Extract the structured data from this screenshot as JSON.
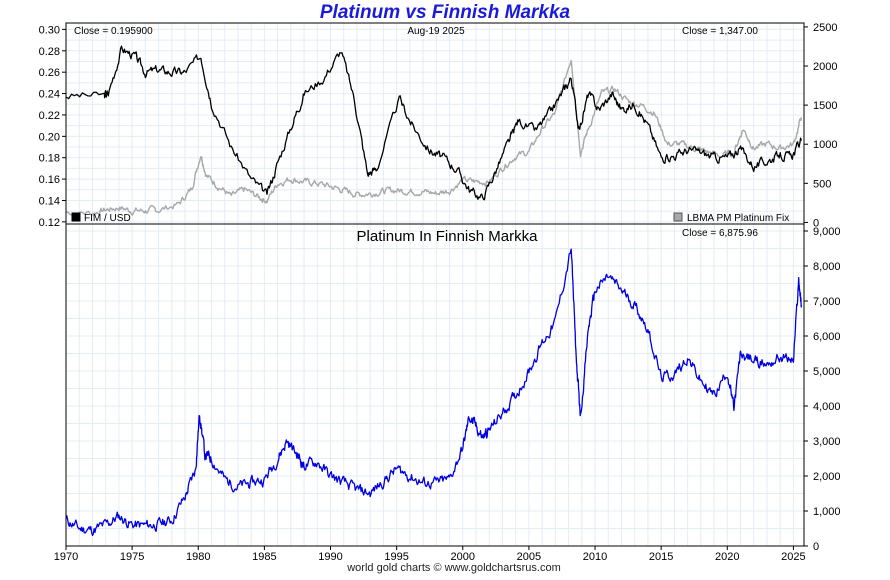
{
  "title": "Platinum vs Finnish Markka",
  "credit": "world gold charts © www.goldchartsrus.com",
  "date_label": "Aug-19  2025",
  "colors": {
    "title": "#1a1adb",
    "fim": "#000000",
    "platinum_usd": "#a8a8a8",
    "platinum_fim": "#0000e0",
    "grid": "#e3ecf5"
  },
  "chart_data": [
    {
      "type": "line",
      "title": "",
      "x_ticks": [
        "1970",
        "1975",
        "1980",
        "1985",
        "1990",
        "1995",
        "2000",
        "2005",
        "2010",
        "2015",
        "2020",
        "2025"
      ],
      "xlim": [
        1970,
        2025.8
      ],
      "left_axis": {
        "ticks": [
          "0.12",
          "0.14",
          "0.16",
          "0.18",
          "0.20",
          "0.22",
          "0.24",
          "0.26",
          "0.28",
          "0.30"
        ],
        "ylim": [
          0.118,
          0.306
        ]
      },
      "right_axis": {
        "ticks": [
          "0",
          "500",
          "1000",
          "1500",
          "2000",
          "2500"
        ],
        "ylim": [
          -20,
          2550
        ]
      },
      "close_left": "Close = 0.195900",
      "close_right": "Close = 1,347.00",
      "grid": true,
      "series": [
        {
          "name": "FIM / USD",
          "axis": "left",
          "legend_position": "bottom-left",
          "x": [
            1970,
            1972.9,
            1973.2,
            1974.2,
            1975.2,
            1976,
            1977,
            1978,
            1979,
            1980.2,
            1981,
            1982.5,
            1984,
            1985.2,
            1986,
            1987.2,
            1988,
            1989.5,
            1990.8,
            1991.8,
            1992.8,
            1993.5,
            1995.2,
            1996.2,
            1997.5,
            1998.5,
            1999.5,
            2000.5,
            2001.5,
            2002.5,
            2003.5,
            2004.2,
            2005.5,
            2006.5,
            2007.5,
            2008.2,
            2008.8,
            2009.5,
            2010.3,
            2011.3,
            2012,
            2013,
            2014,
            2015,
            2016,
            2017,
            2018,
            2019,
            2020,
            2021,
            2022,
            2023,
            2024,
            2024.8,
            2025.6
          ],
          "values": [
            0.238,
            0.238,
            0.24,
            0.282,
            0.275,
            0.26,
            0.262,
            0.26,
            0.26,
            0.275,
            0.232,
            0.19,
            0.16,
            0.145,
            0.175,
            0.215,
            0.24,
            0.255,
            0.28,
            0.235,
            0.165,
            0.17,
            0.235,
            0.21,
            0.187,
            0.18,
            0.17,
            0.15,
            0.142,
            0.168,
            0.195,
            0.215,
            0.205,
            0.22,
            0.24,
            0.255,
            0.205,
            0.24,
            0.225,
            0.24,
            0.225,
            0.23,
            0.21,
            0.18,
            0.182,
            0.187,
            0.185,
            0.18,
            0.18,
            0.188,
            0.172,
            0.177,
            0.183,
            0.18,
            0.196
          ]
        },
        {
          "name": "LBMA PM Platinum Fix",
          "axis": "right",
          "legend_position": "bottom-right",
          "x": [
            1970,
            1972,
            1973,
            1974,
            1975,
            1976,
            1977,
            1978.5,
            1979.5,
            1980.2,
            1980.6,
            1981.5,
            1982.5,
            1983.5,
            1984.5,
            1985.2,
            1986,
            1987,
            1988,
            1989,
            1990,
            1991,
            1992,
            1993,
            1994,
            1995,
            1996,
            1997,
            1998,
            1999,
            2000,
            2001,
            2002,
            2003,
            2004,
            2005,
            2006,
            2007,
            2008.2,
            2008.9,
            2009.5,
            2010.5,
            2011.5,
            2012.5,
            2013.5,
            2014.5,
            2015.5,
            2016.5,
            2017.5,
            2018.5,
            2019.5,
            2020.5,
            2021.2,
            2022,
            2023,
            2024,
            2025,
            2025.6
          ],
          "values": [
            130,
            120,
            160,
            190,
            150,
            150,
            160,
            230,
            430,
            880,
            600,
            470,
            330,
            420,
            330,
            280,
            500,
            560,
            520,
            500,
            460,
            410,
            360,
            370,
            400,
            410,
            400,
            395,
            370,
            410,
            540,
            520,
            520,
            700,
            850,
            900,
            1200,
            1400,
            2100,
            900,
            1200,
            1650,
            1700,
            1550,
            1500,
            1400,
            1000,
            1000,
            950,
            900,
            850,
            900,
            1200,
            950,
            1000,
            950,
            1000,
            1347
          ]
        },
        {
          "name": "",
          "axis": "right",
          "close_label": "",
          "x": [],
          "values": []
        }
      ]
    },
    {
      "type": "line",
      "title": "Platinum In Finnish Markka",
      "close": "Close = 6,875.96",
      "x_ticks": [
        "1970",
        "1975",
        "1980",
        "1985",
        "1990",
        "1995",
        "2000",
        "2005",
        "2010",
        "2015",
        "2020",
        "2025"
      ],
      "y_ticks": [
        "0",
        "1,000",
        "2,000",
        "3,000",
        "4,000",
        "5,000",
        "6,000",
        "7,000",
        "8,000",
        "9,000"
      ],
      "xlim": [
        1970,
        2025.8
      ],
      "ylim": [
        0,
        9200
      ],
      "grid": true,
      "series": [
        {
          "name": "",
          "x": [
            1970,
            1971,
            1972,
            1973,
            1974,
            1975,
            1976,
            1977,
            1978,
            1979,
            1979.8,
            1980.1,
            1980.5,
            1981,
            1982,
            1983,
            1984,
            1985,
            1986,
            1986.7,
            1987.5,
            1988,
            1989,
            1990,
            1991,
            1992,
            1993,
            1994,
            1995,
            1996,
            1997,
            1998,
            1999,
            2000,
            2000.5,
            2001,
            2001.5,
            2002,
            2003,
            2004,
            2005,
            2006,
            2007,
            2008.2,
            2008.6,
            2008.9,
            2009.5,
            2010,
            2011,
            2012,
            2013,
            2014,
            2015,
            2016,
            2017,
            2018,
            2019,
            2020,
            2020.5,
            2021,
            2022,
            2023,
            2024,
            2025,
            2025.4,
            2025.6
          ],
          "values": [
            750,
            500,
            450,
            600,
            850,
            600,
            580,
            620,
            750,
            1400,
            2200,
            3800,
            2600,
            2500,
            1900,
            1700,
            1800,
            1900,
            2500,
            3000,
            2600,
            2300,
            2400,
            2000,
            1800,
            1600,
            1500,
            1850,
            2200,
            2000,
            1800,
            1800,
            1900,
            2800,
            3700,
            3400,
            3100,
            3300,
            3800,
            4300,
            5000,
            5800,
            6400,
            8500,
            5200,
            3700,
            6200,
            7300,
            7700,
            7300,
            6900,
            6200,
            4800,
            4900,
            5400,
            4700,
            4300,
            5000,
            3900,
            5500,
            5300,
            5200,
            5400,
            5300,
            7600,
            6876
          ]
        }
      ]
    }
  ]
}
